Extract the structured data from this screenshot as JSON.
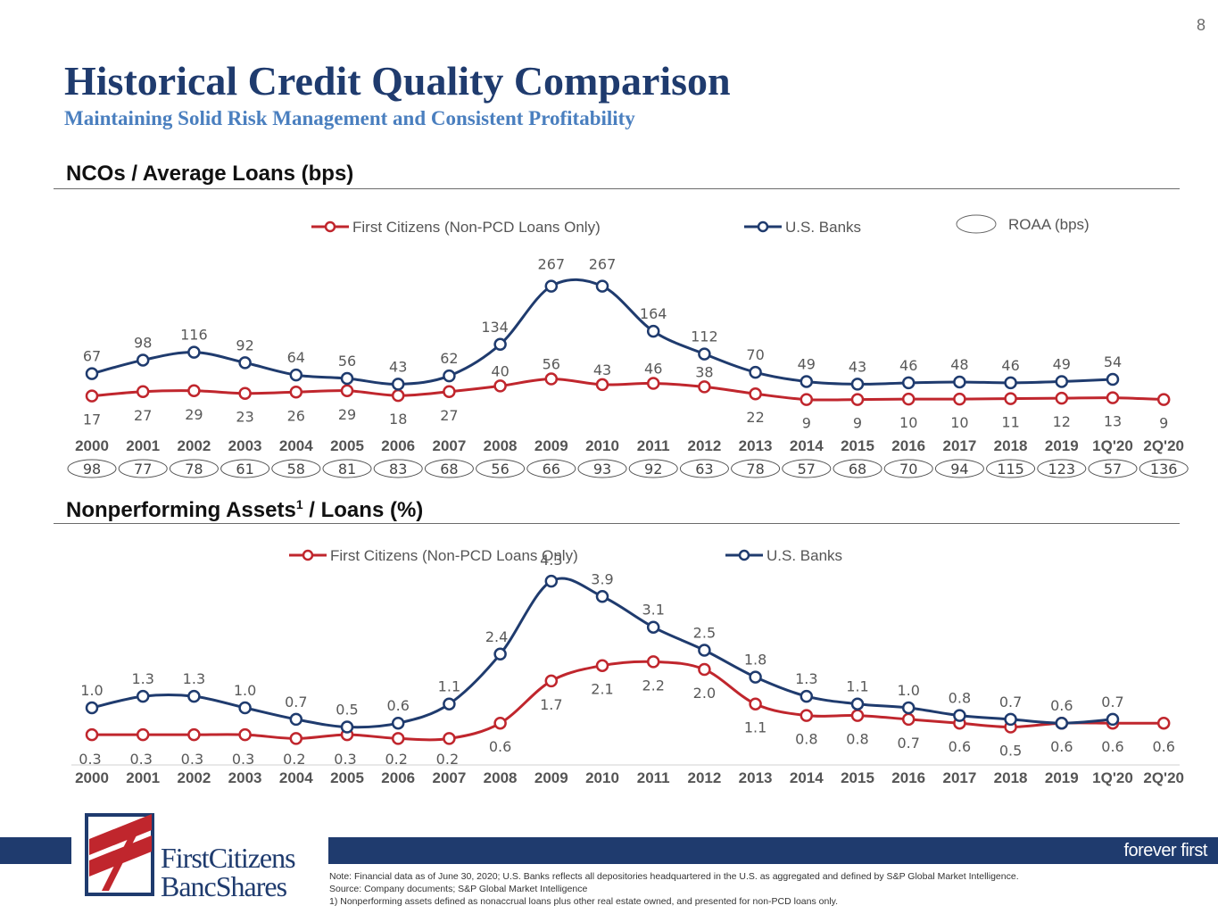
{
  "page_number": "8",
  "title": "Historical Credit Quality Comparison",
  "subtitle": "Maintaining Solid Risk Management and Consistent Profitability",
  "logo": {
    "line1": "FirstCitizens",
    "line2": "BancShares"
  },
  "tagline": "forever first",
  "footnotes": {
    "note": "Note: Financial data as of June 30, 2020; U.S. Banks reflects all depositories headquartered in the U.S. as aggregated and defined by S&P Global Market Intelligence.",
    "source": "Source: Company documents; S&P Global Market Intelligence",
    "footnote1": "1) Nonperforming assets defined as nonaccrual loans plus other real estate owned, and presented for non-PCD loans only."
  },
  "colors": {
    "navy": "#1f3b6e",
    "red": "#c0262d",
    "accent": "#4a7fbf"
  },
  "chart_data": [
    {
      "type": "line",
      "title": "NCOs / Average Loans (bps)",
      "categories": [
        "2000",
        "2001",
        "2002",
        "2003",
        "2004",
        "2005",
        "2006",
        "2007",
        "2008",
        "2009",
        "2010",
        "2011",
        "2012",
        "2013",
        "2014",
        "2015",
        "2016",
        "2017",
        "2018",
        "2019",
        "1Q'20",
        "2Q'20"
      ],
      "series": [
        {
          "name": "First Citizens (Non-PCD Loans Only)",
          "color": "#c0262d",
          "values": [
            17,
            27,
            29,
            23,
            26,
            29,
            18,
            27,
            40,
            56,
            43,
            46,
            38,
            22,
            9,
            9,
            10,
            10,
            11,
            12,
            13,
            9
          ]
        },
        {
          "name": "U.S. Banks",
          "color": "#1f3b6e",
          "values": [
            67,
            98,
            116,
            92,
            64,
            56,
            43,
            62,
            134,
            267,
            267,
            164,
            112,
            70,
            49,
            43,
            46,
            48,
            46,
            49,
            54,
            null
          ]
        }
      ],
      "roaa_legend": "ROAA (bps)",
      "roaa_values": [
        98,
        77,
        78,
        61,
        58,
        81,
        83,
        68,
        56,
        66,
        93,
        92,
        63,
        78,
        57,
        68,
        70,
        94,
        115,
        123,
        57,
        136
      ]
    },
    {
      "type": "line",
      "title_main": "Nonperforming Assets",
      "title_sup": "1",
      "title_rest": " / Loans (%)",
      "categories": [
        "2000",
        "2001",
        "2002",
        "2003",
        "2004",
        "2005",
        "2006",
        "2007",
        "2008",
        "2009",
        "2010",
        "2011",
        "2012",
        "2013",
        "2014",
        "2015",
        "2016",
        "2017",
        "2018",
        "2019",
        "1Q'20",
        "2Q'20"
      ],
      "series": [
        {
          "name": "First Citizens (Non-PCD Loans Only)",
          "color": "#c0262d",
          "values": [
            0.3,
            0.3,
            0.3,
            0.3,
            0.2,
            0.3,
            0.2,
            0.2,
            0.6,
            1.7,
            2.1,
            2.2,
            2.0,
            1.1,
            0.8,
            0.8,
            0.7,
            0.6,
            0.5,
            0.6,
            0.6,
            0.6
          ]
        },
        {
          "name": "U.S. Banks",
          "color": "#1f3b6e",
          "values": [
            1.0,
            1.3,
            1.3,
            1.0,
            0.7,
            0.5,
            0.6,
            1.1,
            2.4,
            4.3,
            3.9,
            3.1,
            2.5,
            1.8,
            1.3,
            1.1,
            1.0,
            0.8,
            0.7,
            0.6,
            0.7,
            null
          ]
        }
      ]
    }
  ]
}
